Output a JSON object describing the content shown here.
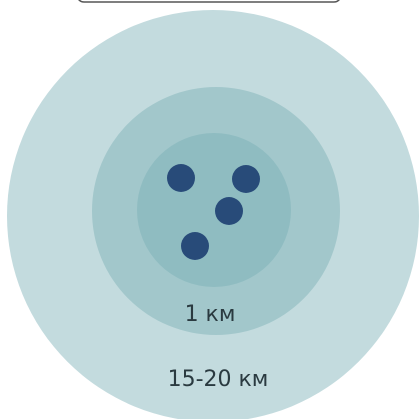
{
  "diagram": {
    "labels": {
      "inner_radius": "1 км",
      "outer_radius": "15-20 км"
    },
    "colors": {
      "outer_ring": "#c3dbde",
      "middle_ring": "#a2c7cb",
      "inner_ring": "#8fbcc1",
      "dots": "#284b79",
      "top_bar_stroke": "#555555",
      "label_text": "#2a3a40"
    },
    "dot_count": 4
  }
}
